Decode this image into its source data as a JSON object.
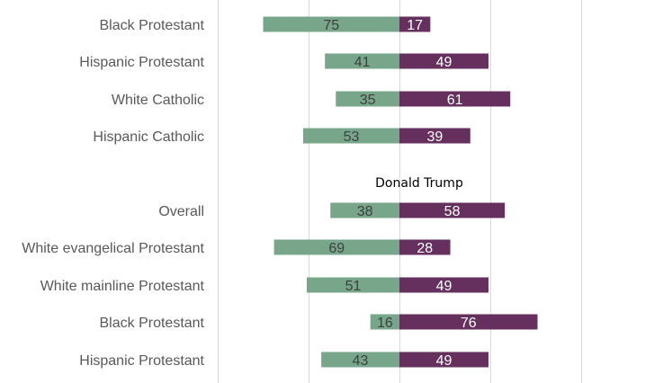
{
  "chart_data": {
    "type": "bar",
    "orientation": "horizontal-diverging",
    "title": "",
    "xlabel": "",
    "ylabel": "",
    "xlim": [
      -100,
      150
    ],
    "grid": true,
    "colors": {
      "left": "#77a68b",
      "right": "#65305e",
      "left_text": "#3f3f3f",
      "right_text": "#ffffff"
    },
    "annotation": "Donald Trump",
    "groups": [
      {
        "rows": [
          {
            "category": "Black Protestant",
            "left": 75,
            "right": 17
          },
          {
            "category": "Hispanic Protestant",
            "left": 41,
            "right": 49
          },
          {
            "category": "White Catholic",
            "left": 35,
            "right": 61
          },
          {
            "category": "Hispanic Catholic",
            "left": 53,
            "right": 39
          }
        ]
      },
      {
        "rows": [
          {
            "category": "Overall",
            "left": 38,
            "right": 58
          },
          {
            "category": "White evangelical Protestant",
            "left": 69,
            "right": 28
          },
          {
            "category": "White mainline Protestant",
            "left": 51,
            "right": 49
          },
          {
            "category": "Black Protestant",
            "left": 16,
            "right": 76
          },
          {
            "category": "Hispanic  Protestant",
            "left": 43,
            "right": 49
          }
        ]
      }
    ]
  }
}
